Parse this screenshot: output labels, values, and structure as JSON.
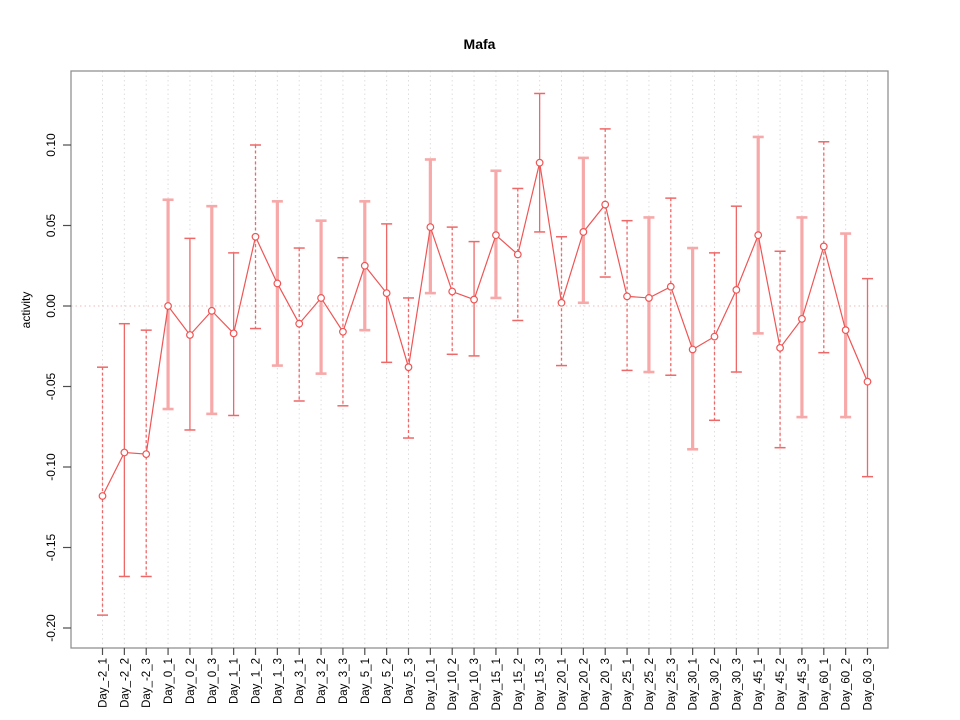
{
  "chart_data": {
    "type": "scatter",
    "title": "Mafa",
    "xlabel": "",
    "ylabel": "activity",
    "ylim": [
      -0.21,
      0.145
    ],
    "ytick_labels": [
      "0.10",
      "0.05",
      "0.00",
      "-0.05",
      "-0.10",
      "-0.15",
      "-0.20"
    ],
    "grid": "vertical-dotted",
    "zero_line": true,
    "legend": "none",
    "categories": [
      "Day_-2_1",
      "Day_-2_2",
      "Day_-2_3",
      "Day_0_1",
      "Day_0_2",
      "Day_0_3",
      "Day_1_1",
      "Day_1_2",
      "Day_1_3",
      "Day_3_1",
      "Day_3_2",
      "Day_3_3",
      "Day_5_1",
      "Day_5_2",
      "Day_5_3",
      "Day_10_1",
      "Day_10_2",
      "Day_10_3",
      "Day_15_1",
      "Day_15_2",
      "Day_15_3",
      "Day_20_1",
      "Day_20_2",
      "Day_20_3",
      "Day_25_1",
      "Day_25_2",
      "Day_25_3",
      "Day_30_1",
      "Day_30_2",
      "Day_30_3",
      "Day_45_1",
      "Day_45_2",
      "Day_45_3",
      "Day_60_1",
      "Day_60_2",
      "Day_60_3"
    ],
    "series": [
      {
        "name": "activity",
        "values": [
          -0.118,
          -0.091,
          -0.092,
          0.0,
          -0.018,
          -0.003,
          -0.017,
          0.043,
          0.014,
          -0.011,
          0.005,
          -0.016,
          0.025,
          0.008,
          -0.038,
          0.049,
          0.009,
          0.004,
          0.044,
          0.032,
          0.089,
          0.002,
          0.046,
          0.063,
          0.006,
          0.005,
          0.012,
          -0.027,
          -0.019,
          0.01,
          0.044,
          -0.026,
          -0.008,
          0.037,
          -0.015,
          -0.047
        ],
        "lower": [
          -0.192,
          -0.168,
          -0.168,
          -0.064,
          -0.077,
          -0.067,
          -0.068,
          -0.014,
          -0.037,
          -0.059,
          -0.042,
          -0.062,
          -0.015,
          -0.035,
          -0.082,
          0.008,
          -0.03,
          -0.031,
          0.005,
          -0.009,
          0.046,
          -0.037,
          0.002,
          0.018,
          -0.04,
          -0.041,
          -0.043,
          -0.089,
          -0.071,
          -0.041,
          -0.017,
          -0.088,
          -0.069,
          -0.029,
          -0.069,
          -0.106
        ],
        "upper": [
          -0.038,
          -0.011,
          -0.015,
          0.066,
          0.042,
          0.062,
          0.033,
          0.1,
          0.065,
          0.036,
          0.053,
          0.03,
          0.065,
          0.051,
          0.005,
          0.091,
          0.049,
          0.04,
          0.084,
          0.073,
          0.132,
          0.043,
          0.092,
          0.11,
          0.053,
          0.055,
          0.067,
          0.036,
          0.033,
          0.062,
          0.105,
          0.034,
          0.055,
          0.102,
          0.045,
          0.017
        ]
      }
    ],
    "bar_styles": [
      "dashed",
      "solid",
      "dashed",
      "thick",
      "solid",
      "thick",
      "solid",
      "dashed",
      "thick",
      "dashed",
      "thick",
      "dashed",
      "thick",
      "solid",
      "dashed",
      "thick",
      "dashed",
      "solid",
      "thick",
      "dashed",
      "solid",
      "dashed",
      "thick",
      "dashed",
      "dashed",
      "thick",
      "dashed",
      "thick",
      "dashed",
      "solid",
      "thick",
      "dashed",
      "thick",
      "dashed",
      "thick",
      "solid"
    ]
  },
  "colors": {
    "point_line_red": "#ee5555",
    "thin_bar_red": "#ef6868",
    "thick_bar_pink": "#f7a8a8",
    "zero_line_pink": "#efb9b9",
    "gridline_gray": "#dedede",
    "frame_gray": "#919191",
    "axis_tick_gray": "#4d4d4d",
    "text_black": "#000000",
    "marker_fill": "#ffffff"
  }
}
